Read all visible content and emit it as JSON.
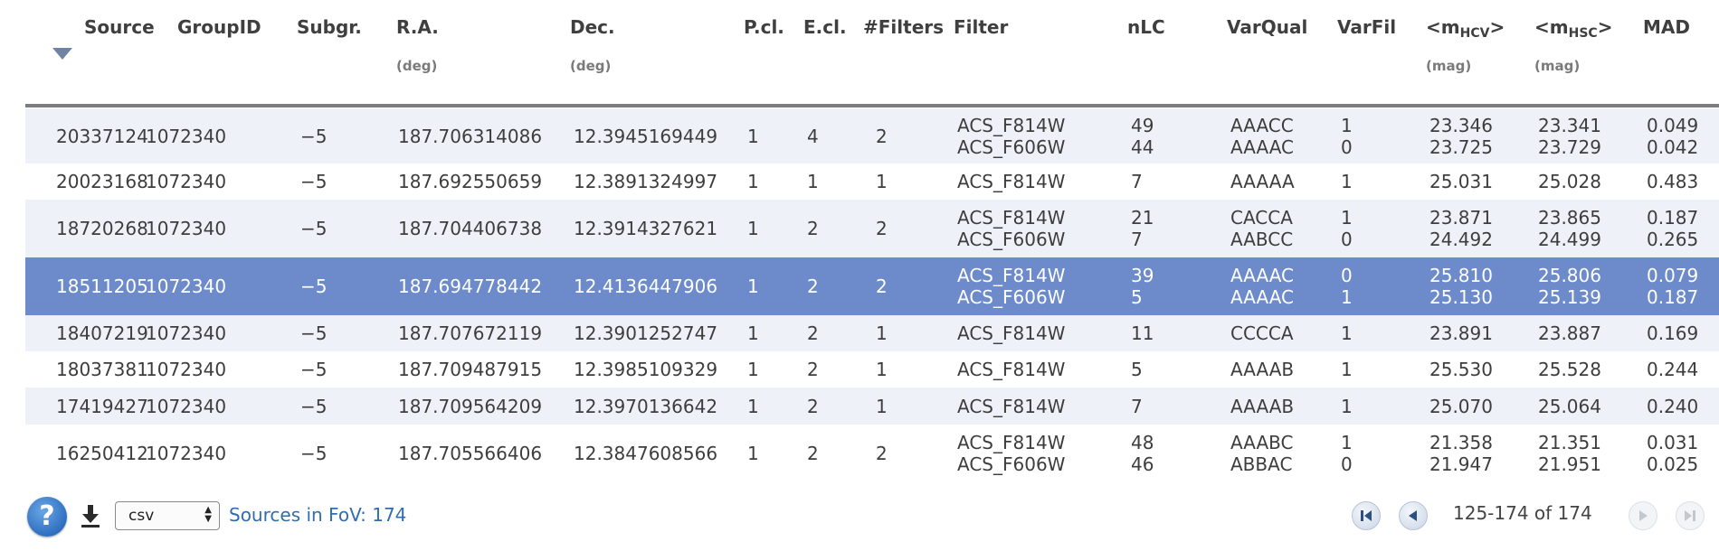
{
  "header": {
    "columns": [
      {
        "label": "Source",
        "unit": ""
      },
      {
        "label": "GroupID",
        "unit": ""
      },
      {
        "label": "Subgr.",
        "unit": ""
      },
      {
        "label": "R.A.",
        "unit": "(deg)"
      },
      {
        "label": "Dec.",
        "unit": "(deg)"
      },
      {
        "label": "P.cl.",
        "unit": ""
      },
      {
        "label": "E.cl.",
        "unit": ""
      },
      {
        "label": "#Filters",
        "unit": ""
      },
      {
        "label": "Filter",
        "unit": ""
      },
      {
        "label": "nLC",
        "unit": ""
      },
      {
        "label": "VarQual",
        "unit": ""
      },
      {
        "label": "VarFil",
        "unit": ""
      },
      {
        "label": "<m",
        "sub": "HCV",
        "suffix": ">",
        "unit": "(mag)"
      },
      {
        "label": "<m",
        "sub": "HSC",
        "suffix": ">",
        "unit": "(mag)"
      },
      {
        "label": "MAD",
        "unit": ""
      }
    ],
    "sort_icon": "sort-descending-triangle-icon"
  },
  "rows": [
    {
      "source": "20337124",
      "groupid": "1072340",
      "subgr": "−5",
      "ra": "187.706314086",
      "dec": "12.3945169449",
      "pcl": "1",
      "ecl": "4",
      "nfilters": "2",
      "filter": [
        "ACS_F814W",
        "ACS_F606W"
      ],
      "nlc": [
        "49",
        "44"
      ],
      "varqual": [
        "AAACC",
        "AAAAC"
      ],
      "varfil": [
        "1",
        "0"
      ],
      "mhcv": [
        "23.346",
        "23.725"
      ],
      "mhsc": [
        "23.341",
        "23.729"
      ],
      "mad": [
        "0.049",
        "0.042"
      ],
      "selected": false
    },
    {
      "source": "20023168",
      "groupid": "1072340",
      "subgr": "−5",
      "ra": "187.692550659",
      "dec": "12.3891324997",
      "pcl": "1",
      "ecl": "1",
      "nfilters": "1",
      "filter": [
        "ACS_F814W"
      ],
      "nlc": [
        "7"
      ],
      "varqual": [
        "AAAAA"
      ],
      "varfil": [
        "1"
      ],
      "mhcv": [
        "25.031"
      ],
      "mhsc": [
        "25.028"
      ],
      "mad": [
        "0.483"
      ],
      "selected": false
    },
    {
      "source": "18720268",
      "groupid": "1072340",
      "subgr": "−5",
      "ra": "187.704406738",
      "dec": "12.3914327621",
      "pcl": "1",
      "ecl": "2",
      "nfilters": "2",
      "filter": [
        "ACS_F814W",
        "ACS_F606W"
      ],
      "nlc": [
        "21",
        "7"
      ],
      "varqual": [
        "CACCA",
        "AABCC"
      ],
      "varfil": [
        "1",
        "0"
      ],
      "mhcv": [
        "23.871",
        "24.492"
      ],
      "mhsc": [
        "23.865",
        "24.499"
      ],
      "mad": [
        "0.187",
        "0.265"
      ],
      "selected": false
    },
    {
      "source": "18511205",
      "groupid": "1072340",
      "subgr": "−5",
      "ra": "187.694778442",
      "dec": "12.4136447906",
      "pcl": "1",
      "ecl": "2",
      "nfilters": "2",
      "filter": [
        "ACS_F814W",
        "ACS_F606W"
      ],
      "nlc": [
        "39",
        "5"
      ],
      "varqual": [
        "AAAAC",
        "AAAAC"
      ],
      "varfil": [
        "0",
        "1"
      ],
      "mhcv": [
        "25.810",
        "25.130"
      ],
      "mhsc": [
        "25.806",
        "25.139"
      ],
      "mad": [
        "0.079",
        "0.187"
      ],
      "selected": true
    },
    {
      "source": "18407219",
      "groupid": "1072340",
      "subgr": "−5",
      "ra": "187.707672119",
      "dec": "12.3901252747",
      "pcl": "1",
      "ecl": "2",
      "nfilters": "1",
      "filter": [
        "ACS_F814W"
      ],
      "nlc": [
        "11"
      ],
      "varqual": [
        "CCCCA"
      ],
      "varfil": [
        "1"
      ],
      "mhcv": [
        "23.891"
      ],
      "mhsc": [
        "23.887"
      ],
      "mad": [
        "0.169"
      ],
      "selected": false
    },
    {
      "source": "18037381",
      "groupid": "1072340",
      "subgr": "−5",
      "ra": "187.709487915",
      "dec": "12.3985109329",
      "pcl": "1",
      "ecl": "2",
      "nfilters": "1",
      "filter": [
        "ACS_F814W"
      ],
      "nlc": [
        "5"
      ],
      "varqual": [
        "AAAAB"
      ],
      "varfil": [
        "1"
      ],
      "mhcv": [
        "25.530"
      ],
      "mhsc": [
        "25.528"
      ],
      "mad": [
        "0.244"
      ],
      "selected": false
    },
    {
      "source": "17419427",
      "groupid": "1072340",
      "subgr": "−5",
      "ra": "187.709564209",
      "dec": "12.3970136642",
      "pcl": "1",
      "ecl": "2",
      "nfilters": "1",
      "filter": [
        "ACS_F814W"
      ],
      "nlc": [
        "7"
      ],
      "varqual": [
        "AAAAB"
      ],
      "varfil": [
        "1"
      ],
      "mhcv": [
        "25.070"
      ],
      "mhsc": [
        "25.064"
      ],
      "mad": [
        "0.240"
      ],
      "selected": false
    },
    {
      "source": "16250412",
      "groupid": "1072340",
      "subgr": "−5",
      "ra": "187.705566406",
      "dec": "12.3847608566",
      "pcl": "1",
      "ecl": "2",
      "nfilters": "2",
      "filter": [
        "ACS_F814W",
        "ACS_F606W"
      ],
      "nlc": [
        "48",
        "46"
      ],
      "varqual": [
        "AAABC",
        "ABBAC"
      ],
      "varfil": [
        "1",
        "0"
      ],
      "mhcv": [
        "21.358",
        "21.947"
      ],
      "mhsc": [
        "21.351",
        "21.951"
      ],
      "mad": [
        "0.031",
        "0.025"
      ],
      "selected": false
    }
  ],
  "footer": {
    "help_label": "?",
    "help_icon": "help-question-icon",
    "download_icon": "download-icon",
    "format_selected": "csv",
    "sources_in_fov": "Sources in FoV: 174",
    "page_range": "125-174 of 174",
    "nav_icons": [
      "first-page-icon",
      "previous-page-icon",
      "next-page-icon",
      "last-page-icon"
    ]
  },
  "colors": {
    "selected_row": "#6d8bcb",
    "stripe_row": "#eef2f8",
    "link_text": "#2f6db0",
    "header_rule": "#7d7d7d"
  }
}
